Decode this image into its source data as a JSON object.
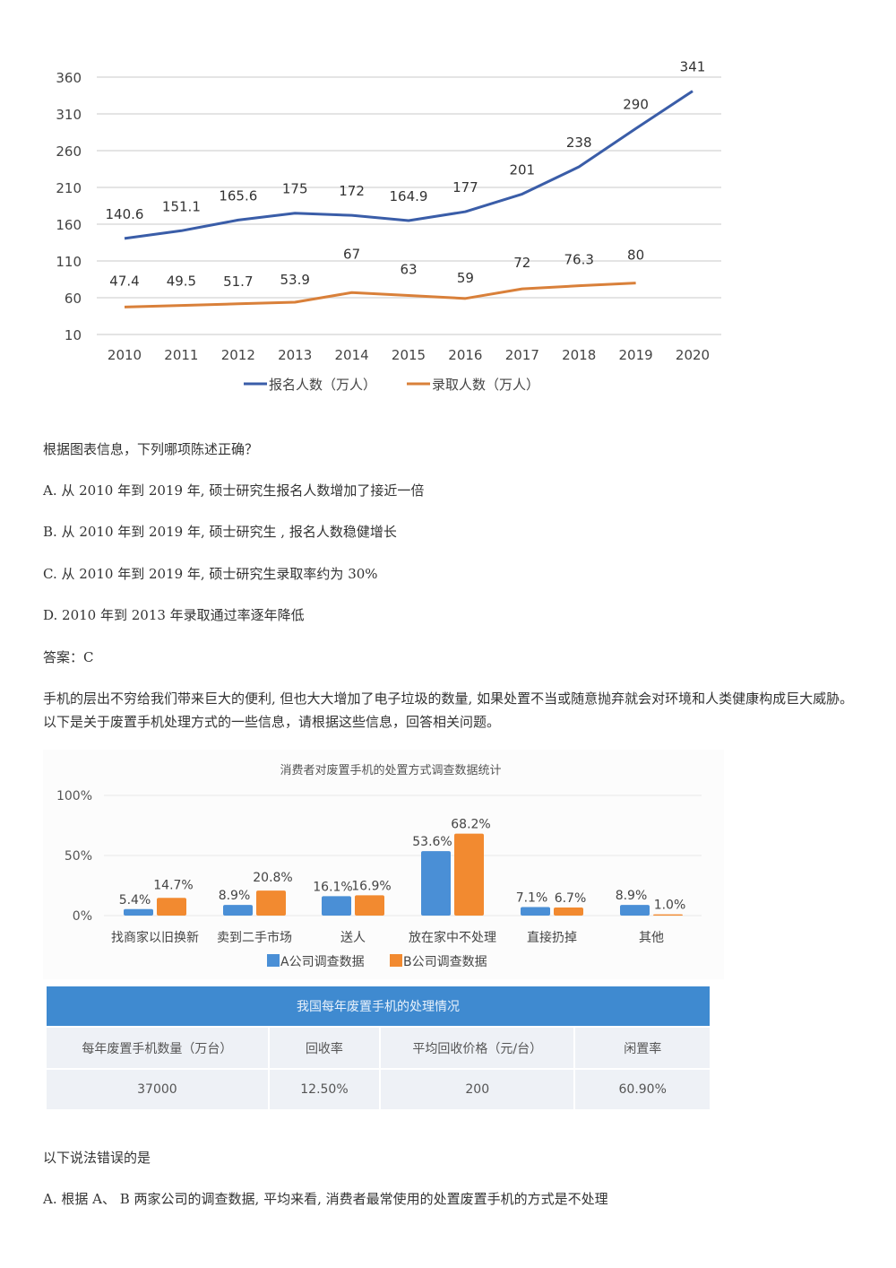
{
  "chart_data": [
    {
      "type": "line",
      "title": "",
      "xlabel": "",
      "ylabel": "",
      "x": [
        "2010",
        "2011",
        "2012",
        "2013",
        "2014",
        "2015",
        "2016",
        "2017",
        "2018",
        "2019",
        "2020"
      ],
      "yticks": [
        "360",
        "310",
        "260",
        "210",
        "160",
        "110",
        "60",
        "10"
      ],
      "ylim": [
        10,
        360
      ],
      "grid": true,
      "legend_position": "bottom",
      "series": [
        {
          "name": "报名人数（万人）",
          "color": "#3a5da8",
          "values": [
            140.6,
            151.1,
            165.6,
            175,
            172,
            164.9,
            177,
            201,
            238,
            290,
            341
          ],
          "labels": [
            "140.6",
            "151.1",
            "165.6",
            "175",
            "172",
            "164.9",
            "177",
            "201",
            "238",
            "290",
            "341"
          ]
        },
        {
          "name": "录取人数（万人）",
          "color": "#d9803a",
          "values": [
            47.4,
            49.5,
            51.7,
            53.9,
            67,
            63,
            59,
            72,
            76.3,
            80,
            null
          ],
          "labels": [
            "47.4",
            "49.5",
            "51.7",
            "53.9",
            "67",
            "63",
            "59",
            "72",
            "76.3",
            "80",
            ""
          ]
        }
      ]
    },
    {
      "type": "bar",
      "title": "消费者对废置手机的处置方式调查数据统计",
      "xlabel": "",
      "ylabel": "",
      "categories": [
        "找商家以旧换新",
        "卖到二手市场",
        "送人",
        "放在家中不处理",
        "直接扔掉",
        "其他"
      ],
      "yticks": [
        "100%",
        "50%",
        "0%"
      ],
      "ylim": [
        0,
        100
      ],
      "grid": true,
      "legend_position": "bottom",
      "series": [
        {
          "name": "A公司调查数据",
          "color": "#4a8fd6",
          "values": [
            5.4,
            8.9,
            16.1,
            53.6,
            7.1,
            8.9
          ],
          "labels": [
            "5.4%",
            "8.9%",
            "16.1%",
            "53.6%",
            "7.1%",
            "8.9%"
          ]
        },
        {
          "name": "B公司调查数据",
          "color": "#f28a30",
          "values": [
            14.7,
            20.8,
            16.9,
            68.2,
            6.7,
            1.0
          ],
          "labels": [
            "14.7%",
            "20.8%",
            "16.9%",
            "68.2%",
            "6.7%",
            "1.0%"
          ]
        }
      ]
    },
    {
      "type": "table",
      "title": "我国每年废置手机的处理情况",
      "columns": [
        "每年废置手机数量（万台）",
        "回收率",
        "平均回收价格（元/台）",
        "闲置率"
      ],
      "rows": [
        [
          "37000",
          "12.50%",
          "200",
          "60.90%"
        ]
      ]
    }
  ],
  "question1": {
    "stem": "根据图表信息，下列哪项陈述正确？",
    "options": [
      "A. 从 2010 年到 2019 年, 硕士研究生报名人数增加了接近一倍",
      "B. 从 2010 年到 2019 年, 硕士研究生 , 报名人数稳健增长",
      "C. 从 2010 年到 2019 年, 硕士研究生录取率约为 30%",
      "D. 2010 年到 2013 年录取通过率逐年降低"
    ],
    "answer": "答案：C"
  },
  "intro": "手机的层出不穷给我们带来巨大的便利, 但也大大增加了电子垃圾的数量, 如果处置不当或随意抛弃就会对环境和人类健康构成巨大威胁。以下是关于废置手机处理方式的一些信息，请根据这些信息，回答相关问题。",
  "question2": {
    "stem": "以下说法错误的是",
    "options": [
      "A. 根据 A、 B 两家公司的调查数据, 平均来看, 消费者最常使用的处置废置手机的方式是不处理"
    ]
  }
}
